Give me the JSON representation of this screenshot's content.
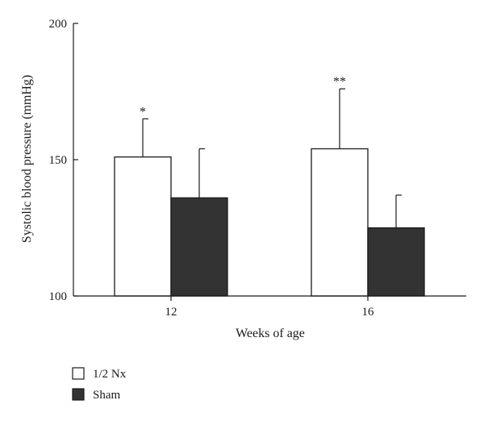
{
  "chart_data": {
    "type": "bar",
    "categories": [
      "12",
      "16"
    ],
    "series": [
      {
        "name": "1/2 Nx",
        "values": [
          151,
          154
        ],
        "errors": [
          14,
          22
        ],
        "color": "#ffffff"
      },
      {
        "name": "Sham",
        "values": [
          136,
          125
        ],
        "errors": [
          18,
          12
        ],
        "color": "#333333"
      }
    ],
    "annotations": [
      "*",
      "**"
    ],
    "xlabel": "Weeks of age",
    "ylabel": "Systolic blood pressure (mmHg)",
    "ylim": [
      100,
      200
    ],
    "yticks": [
      100,
      150,
      200
    ],
    "grid": false,
    "legend_position": "bottom-left"
  }
}
